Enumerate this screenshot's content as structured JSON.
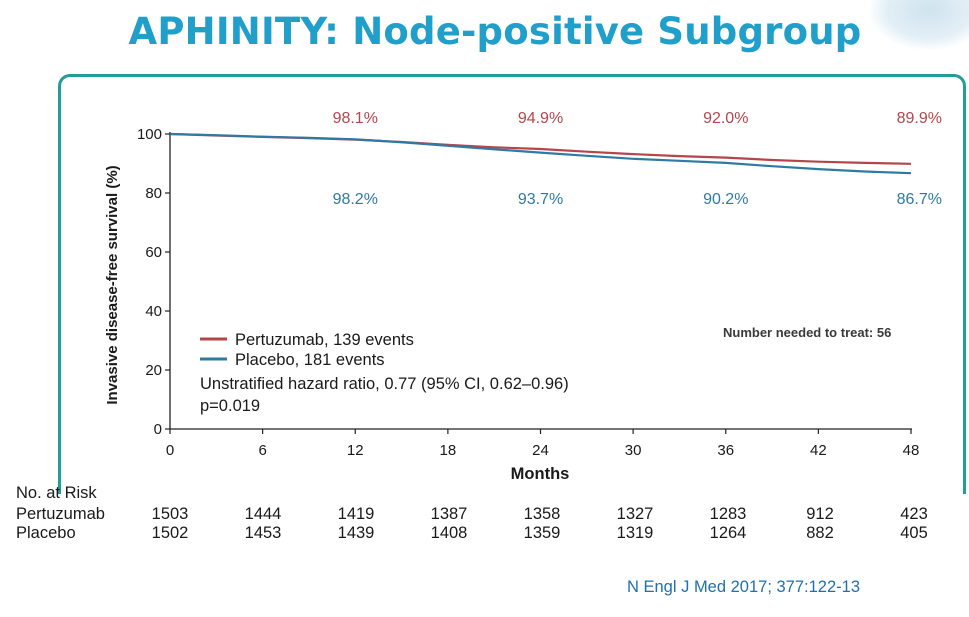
{
  "slide": {
    "title": "APHINITY: Node-positive Subgroup",
    "citation": "N Engl J Med 2017; 377:122-13"
  },
  "colors": {
    "title": "#1f9fc9",
    "frame": "#1f9f96",
    "pertuzumab": "#b5454b",
    "placebo": "#2f7aa3"
  },
  "chart_data": {
    "type": "line",
    "xlabel": "Months",
    "ylabel": "Invasive disease-free survival (%)",
    "xlim": [
      0,
      48
    ],
    "ylim": [
      0,
      100
    ],
    "xticks": [
      "0",
      "6",
      "12",
      "18",
      "24",
      "30",
      "36",
      "42",
      "48"
    ],
    "yticks": [
      "0",
      "20",
      "40",
      "60",
      "80",
      "100"
    ],
    "grid": false,
    "series": [
      {
        "name": "Pertuzumab, 139 events",
        "color": "#b5454b",
        "x": [
          0,
          3,
          6,
          9,
          12,
          15,
          18,
          21,
          24,
          27,
          30,
          33,
          36,
          39,
          42,
          45,
          48
        ],
        "y": [
          100,
          99.5,
          99.0,
          98.6,
          98.1,
          97.3,
          96.3,
          95.5,
          94.9,
          94.0,
          93.2,
          92.5,
          92.0,
          91.2,
          90.6,
          90.2,
          89.9
        ]
      },
      {
        "name": "Placebo, 181 events",
        "color": "#2f7aa3",
        "x": [
          0,
          3,
          6,
          9,
          12,
          15,
          18,
          21,
          24,
          27,
          30,
          33,
          36,
          39,
          42,
          45,
          48
        ],
        "y": [
          100,
          99.6,
          99.1,
          98.7,
          98.2,
          97.2,
          96.0,
          94.8,
          93.7,
          92.6,
          91.6,
          90.9,
          90.2,
          89.1,
          88.1,
          87.3,
          86.7
        ]
      }
    ],
    "annotations": {
      "pertuzumab_pct": [
        "98.1%",
        "94.9%",
        "92.0%",
        "89.9%"
      ],
      "placebo_pct": [
        "98.2%",
        "93.7%",
        "90.2%",
        "86.7%"
      ],
      "pct_months": [
        12,
        24,
        36,
        48
      ],
      "hazard_ratio": "Unstratified hazard ratio, 0.77 (95% CI, 0.62–0.96)",
      "p_value": "p=0.019",
      "nnt": "Number needed to treat: 56"
    },
    "legend": "bottom-left"
  },
  "risk_table": {
    "header": "No. at Risk",
    "rows": [
      {
        "label": "Pertuzumab",
        "values": [
          "1503",
          "1444",
          "1419",
          "1387",
          "1358",
          "1327",
          "1283",
          "912",
          "423"
        ]
      },
      {
        "label": "Placebo",
        "values": [
          "1502",
          "1453",
          "1439",
          "1408",
          "1359",
          "1319",
          "1264",
          "882",
          "405"
        ]
      }
    ]
  }
}
